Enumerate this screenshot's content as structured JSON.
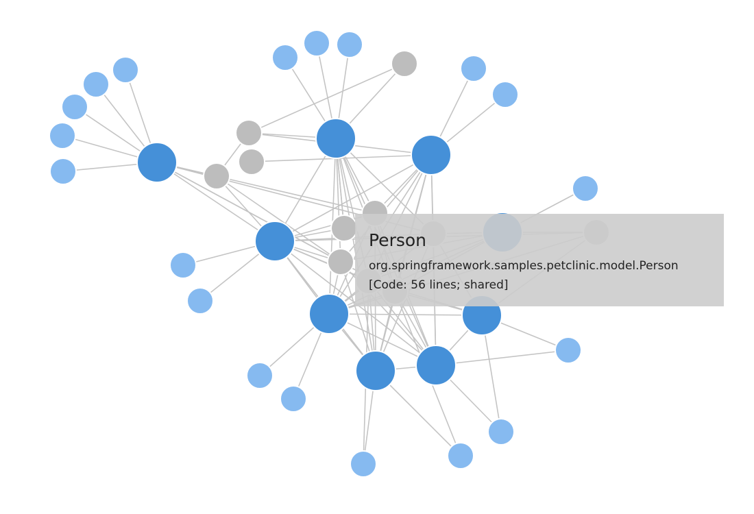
{
  "colors": {
    "edge": "#c4c4c4",
    "primary_node": "#4590d8",
    "secondary_node": "#86baf0",
    "shared_node": "#bdbdbd",
    "tooltip_bg": "#cccccc",
    "text": "#222222"
  },
  "graph": {
    "nodes": [
      {
        "id": "h1",
        "kind": "primary"
      },
      {
        "id": "h2",
        "kind": "primary"
      },
      {
        "id": "h3",
        "kind": "primary"
      },
      {
        "id": "h4",
        "kind": "primary"
      },
      {
        "id": "h5",
        "kind": "primary"
      },
      {
        "id": "h6",
        "kind": "primary"
      },
      {
        "id": "h7",
        "kind": "primary"
      },
      {
        "id": "h8",
        "kind": "primary"
      },
      {
        "id": "h9",
        "kind": "primary"
      },
      {
        "id": "g1",
        "kind": "shared"
      },
      {
        "id": "g2",
        "kind": "shared"
      },
      {
        "id": "g3",
        "kind": "shared"
      },
      {
        "id": "g4",
        "kind": "shared"
      },
      {
        "id": "g5",
        "kind": "shared"
      },
      {
        "id": "g6",
        "kind": "shared"
      },
      {
        "id": "g7",
        "kind": "shared"
      },
      {
        "id": "g8",
        "kind": "shared"
      },
      {
        "id": "g9",
        "kind": "shared"
      },
      {
        "id": "g10",
        "kind": "shared"
      },
      {
        "id": "g11",
        "kind": "shared"
      },
      {
        "id": "l1",
        "kind": "leaf"
      },
      {
        "id": "l2",
        "kind": "leaf"
      },
      {
        "id": "l3",
        "kind": "leaf"
      },
      {
        "id": "l4",
        "kind": "leaf"
      },
      {
        "id": "l5",
        "kind": "leaf"
      },
      {
        "id": "l6",
        "kind": "leaf"
      },
      {
        "id": "l7",
        "kind": "leaf"
      },
      {
        "id": "l8",
        "kind": "leaf"
      },
      {
        "id": "l9",
        "kind": "leaf"
      },
      {
        "id": "l10",
        "kind": "leaf"
      },
      {
        "id": "l11",
        "kind": "leaf"
      },
      {
        "id": "l12",
        "kind": "leaf"
      },
      {
        "id": "l13",
        "kind": "leaf"
      },
      {
        "id": "l14",
        "kind": "leaf"
      },
      {
        "id": "l15",
        "kind": "leaf"
      },
      {
        "id": "l16",
        "kind": "leaf"
      },
      {
        "id": "l17",
        "kind": "leaf"
      },
      {
        "id": "l18",
        "kind": "leaf"
      },
      {
        "id": "l19",
        "kind": "leaf"
      },
      {
        "id": "l20",
        "kind": "leaf"
      },
      {
        "id": "l21",
        "kind": "leaf"
      },
      {
        "id": "l22",
        "kind": "leaf"
      },
      {
        "id": "l23",
        "kind": "leaf"
      },
      {
        "id": "l24",
        "kind": "leaf"
      }
    ],
    "edges": [
      [
        "h1",
        "l1"
      ],
      [
        "h1",
        "l2"
      ],
      [
        "h1",
        "l3"
      ],
      [
        "h1",
        "l4"
      ],
      [
        "h1",
        "l5"
      ],
      [
        "h2",
        "l6"
      ],
      [
        "h2",
        "l7"
      ],
      [
        "h2",
        "l8"
      ],
      [
        "h2",
        "g1"
      ],
      [
        "h3",
        "l9"
      ],
      [
        "h3",
        "l10"
      ],
      [
        "h3",
        "g3"
      ],
      [
        "h4",
        "l11"
      ],
      [
        "h4",
        "l12"
      ],
      [
        "h5",
        "l13"
      ],
      [
        "h5",
        "l14"
      ],
      [
        "h6",
        "l15"
      ],
      [
        "h6",
        "l16"
      ],
      [
        "h7",
        "l17"
      ],
      [
        "h7",
        "l18"
      ],
      [
        "h8",
        "l19"
      ],
      [
        "h9",
        "l20"
      ],
      [
        "h9",
        "l21"
      ],
      [
        "h1",
        "g6"
      ],
      [
        "h1",
        "g7"
      ],
      [
        "h1",
        "h4"
      ],
      [
        "h1",
        "g8"
      ],
      [
        "h1",
        "g4"
      ],
      [
        "h1",
        "g9"
      ],
      [
        "h2",
        "g2"
      ],
      [
        "h2",
        "g5"
      ],
      [
        "h2",
        "h4"
      ],
      [
        "h2",
        "g6"
      ],
      [
        "h2",
        "g7"
      ],
      [
        "h2",
        "g8"
      ],
      [
        "h2",
        "g9"
      ],
      [
        "h2",
        "h5"
      ],
      [
        "h2",
        "h6"
      ],
      [
        "h2",
        "h7"
      ],
      [
        "h2",
        "g10"
      ],
      [
        "h3",
        "g2"
      ],
      [
        "h3",
        "h4"
      ],
      [
        "h3",
        "g6"
      ],
      [
        "h3",
        "g7"
      ],
      [
        "h3",
        "g8"
      ],
      [
        "h3",
        "g9"
      ],
      [
        "h3",
        "h5"
      ],
      [
        "h3",
        "h6"
      ],
      [
        "h3",
        "h7"
      ],
      [
        "h3",
        "g10"
      ],
      [
        "g1",
        "g2"
      ],
      [
        "g5",
        "h2"
      ],
      [
        "g4",
        "h4"
      ],
      [
        "g4",
        "g7"
      ],
      [
        "g5",
        "h4"
      ],
      [
        "g2",
        "g4"
      ],
      [
        "h4",
        "g6"
      ],
      [
        "h4",
        "g7"
      ],
      [
        "h4",
        "g8"
      ],
      [
        "h4",
        "h5"
      ],
      [
        "h4",
        "g9"
      ],
      [
        "h4",
        "g10"
      ],
      [
        "h4",
        "h6"
      ],
      [
        "h4",
        "h7"
      ],
      [
        "h4",
        "g11"
      ],
      [
        "h5",
        "g6"
      ],
      [
        "h5",
        "g7"
      ],
      [
        "h5",
        "g8"
      ],
      [
        "h5",
        "g9"
      ],
      [
        "h5",
        "g10"
      ],
      [
        "h5",
        "h6"
      ],
      [
        "h5",
        "h7"
      ],
      [
        "h5",
        "h9"
      ],
      [
        "h5",
        "g11"
      ],
      [
        "h5",
        "h8"
      ],
      [
        "h6",
        "g6"
      ],
      [
        "h6",
        "g7"
      ],
      [
        "h6",
        "g8"
      ],
      [
        "h6",
        "g9"
      ],
      [
        "h6",
        "g10"
      ],
      [
        "h6",
        "h7"
      ],
      [
        "h7",
        "g6"
      ],
      [
        "h7",
        "g7"
      ],
      [
        "h7",
        "g8"
      ],
      [
        "h7",
        "g9"
      ],
      [
        "h7",
        "g10"
      ],
      [
        "h7",
        "h9"
      ],
      [
        "h8",
        "g9"
      ],
      [
        "h8",
        "g10"
      ],
      [
        "h8",
        "l22"
      ],
      [
        "h8",
        "g8"
      ],
      [
        "h8",
        "g11"
      ],
      [
        "h9",
        "g11"
      ],
      [
        "h9",
        "g9"
      ],
      [
        "h9",
        "g10"
      ],
      [
        "g11",
        "l22"
      ],
      [
        "g6",
        "g9"
      ],
      [
        "g7",
        "h8"
      ],
      [
        "g8",
        "h9"
      ],
      [
        "g9",
        "l23"
      ],
      [
        "g10",
        "l24"
      ]
    ]
  },
  "tooltip": {
    "title": "Person",
    "qualified_name": "org.springframework.samples.petclinic.model.Person",
    "details": "[Code: 56 lines; shared]"
  }
}
